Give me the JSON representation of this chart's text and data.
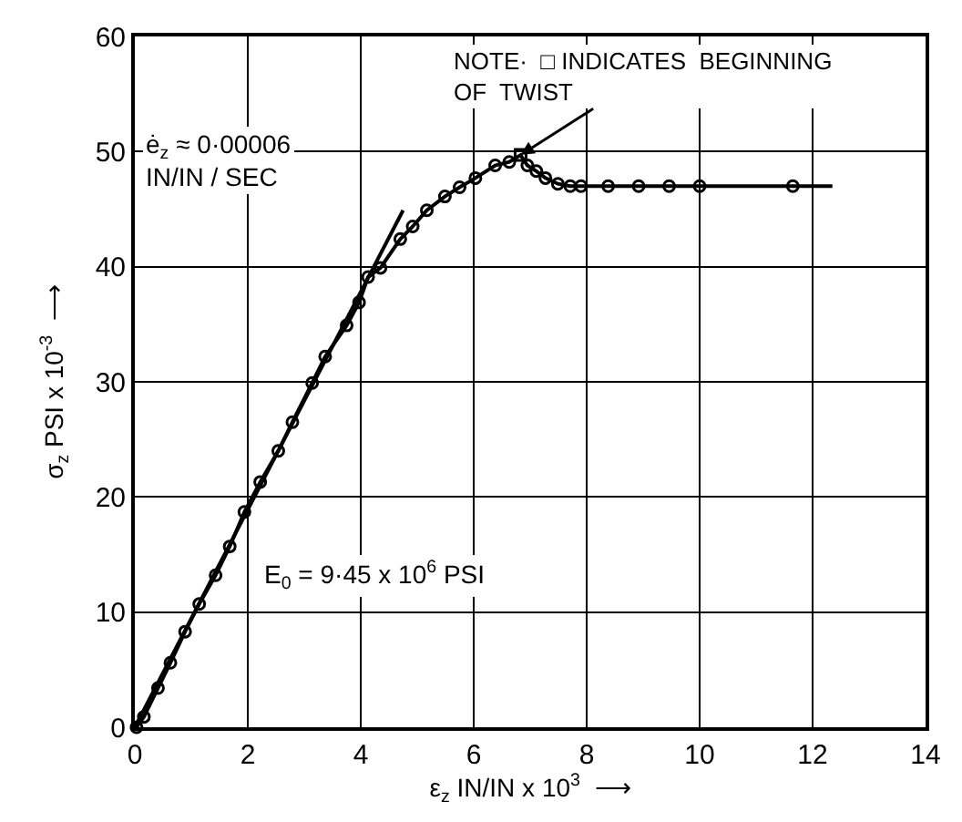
{
  "chart_data": {
    "type": "line",
    "xlabel": "ε$_{z}$ IN/IN x 10$^{3}$  ⟶",
    "ylabel": "σ$_{z}$ PSI x 10$^{-3}$  ⟶",
    "xlim": [
      0,
      14
    ],
    "xticks": [
      0,
      2,
      4,
      6,
      8,
      10,
      12,
      14
    ],
    "ylim": [
      0,
      60
    ],
    "yticks": [
      0,
      10,
      20,
      30,
      40,
      50,
      60
    ],
    "grid": true,
    "series": [
      {
        "marker": "none",
        "color": "#000000",
        "x": [
          0.03,
          0.16,
          0.41,
          0.63,
          0.89,
          1.14,
          1.43,
          1.68,
          1.94,
          2.22,
          2.54,
          2.79,
          3.14,
          3.37,
          3.75,
          3.97,
          4.13,
          4.35,
          4.7,
          4.92,
          5.17,
          5.49,
          5.75,
          6.03,
          6.38,
          6.63,
          6.83,
          6.95,
          7.11,
          7.27,
          7.49,
          7.71,
          7.9,
          8.38,
          8.92,
          9.46,
          10.0,
          11.65,
          12.35
        ],
        "values": [
          0,
          0.9,
          3.4,
          5.6,
          8.3,
          10.7,
          13.2,
          15.7,
          18.7,
          21.3,
          24.0,
          26.5,
          29.9,
          32.2,
          34.9,
          36.9,
          39.1,
          39.9,
          42.4,
          43.5,
          44.9,
          46.1,
          46.9,
          47.7,
          48.8,
          49.1,
          49.7,
          48.8,
          48.3,
          47.7,
          47.2,
          47.0,
          47.0,
          47.0,
          47.0,
          47.0,
          47.0,
          47.0,
          47.0
        ]
      },
      {
        "type": "scatter",
        "marker": "circle",
        "color": "#000000",
        "x": [
          0.03,
          0.16,
          0.41,
          0.63,
          0.89,
          1.14,
          1.43,
          1.68,
          1.94,
          2.22,
          2.54,
          2.79,
          3.14,
          3.37,
          3.75,
          3.97,
          4.13,
          4.35,
          4.7,
          4.92,
          5.17,
          5.49,
          5.75,
          6.03,
          6.38,
          6.63,
          6.95,
          7.11,
          7.27,
          7.49,
          7.71,
          7.9,
          8.38,
          8.92,
          9.46,
          10.0,
          11.65
        ],
        "values": [
          0,
          0.9,
          3.4,
          5.6,
          8.3,
          10.7,
          13.2,
          15.7,
          18.7,
          21.3,
          24.0,
          26.5,
          29.9,
          32.2,
          34.9,
          36.9,
          39.1,
          39.9,
          42.4,
          43.5,
          44.9,
          46.1,
          46.9,
          47.7,
          48.8,
          49.1,
          48.8,
          48.3,
          47.7,
          47.2,
          47.0,
          47.0,
          47.0,
          47.0,
          47.0,
          47.0,
          47.0
        ]
      },
      {
        "type": "scatter",
        "marker": "square",
        "color": "#000000",
        "x": [
          6.83
        ],
        "values": [
          49.7
        ]
      },
      {
        "marker": "none",
        "color": "#000000",
        "x": [
          0,
          4.75
        ],
        "values": [
          0,
          44.9
        ]
      }
    ],
    "annotations": [
      {
        "text": "NOTE·  □ INDICATES  BEGINNING\nOF  TWIST",
        "x": 6.83,
        "y": 49.7
      },
      "ė$_{z}$ ≈ 0·00006\nIN/IN / SEC",
      "E$_{0}$ = 9·45 x 10$^{6}$ PSI"
    ]
  }
}
